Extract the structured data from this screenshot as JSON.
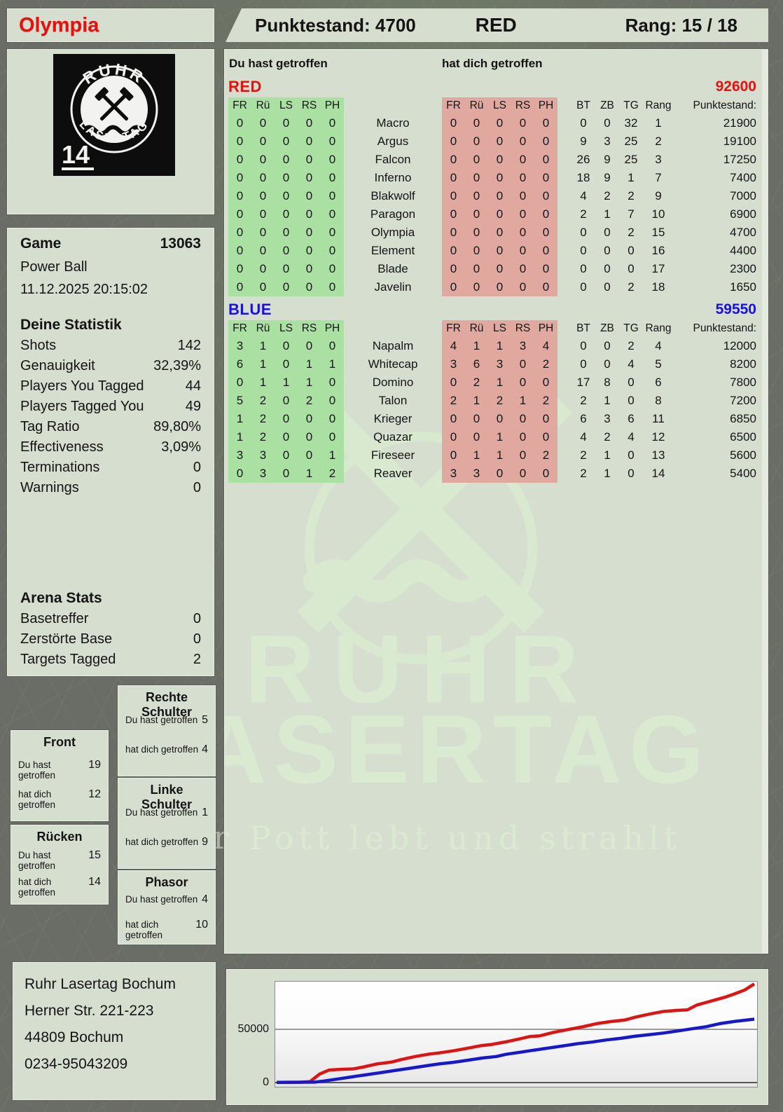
{
  "header": {
    "player_name": "Olympia",
    "score_label": "Punktestand: 4700",
    "team_label": "RED",
    "rank_label": "Rang: 15 / 18"
  },
  "logo": {
    "arc_top": "RUHR",
    "arc_bottom": "LASERTAG",
    "pack_number": "14"
  },
  "game": {
    "title": "Game",
    "number": "13063",
    "mode": "Power Ball",
    "datetime": "11.12.2025 20:15:02"
  },
  "stats": {
    "title": "Deine Statistik",
    "rows": [
      {
        "label": "Shots",
        "value": "142"
      },
      {
        "label": "Genauigkeit",
        "value": "32,39%"
      },
      {
        "label": "Players You Tagged",
        "value": "44"
      },
      {
        "label": "Players Tagged You",
        "value": "49"
      },
      {
        "label": "Tag Ratio",
        "value": "89,80%"
      },
      {
        "label": "Effectiveness",
        "value": "3,09%"
      },
      {
        "label": "Terminations",
        "value": "0"
      },
      {
        "label": "Warnings",
        "value": "0"
      }
    ]
  },
  "arena_stats": {
    "title": "Arena Stats",
    "rows": [
      {
        "label": "Basetreffer",
        "value": "0"
      },
      {
        "label": "Zerstörte Base",
        "value": "0"
      },
      {
        "label": "Targets Tagged",
        "value": "2"
      }
    ]
  },
  "hit_zones": [
    {
      "title": "Rechte Schulter",
      "hit_label": "Du hast getroffen",
      "hit": "5",
      "got_label": "hat dich getroffen",
      "got": "4"
    },
    {
      "title": "Front",
      "hit_label": "Du hast getroffen",
      "hit": "19",
      "got_label": "hat dich getroffen",
      "got": "12"
    },
    {
      "title": "Linke Schulter",
      "hit_label": "Du hast getroffen",
      "hit": "1",
      "got_label": "hat dich getroffen",
      "got": "9"
    },
    {
      "title": "Rücken",
      "hit_label": "Du hast getroffen",
      "hit": "15",
      "got_label": "hat dich getroffen",
      "got": "14"
    },
    {
      "title": "Phasor",
      "hit_label": "Du hast getroffen",
      "hit": "4",
      "got_label": "hat dich getroffen",
      "got": "10"
    }
  ],
  "tables": {
    "you_hit_label": "Du hast getroffen",
    "hit_you_label": "hat dich getroffen",
    "zone_cols": [
      "FR",
      "Rü",
      "LS",
      "RS",
      "PH"
    ],
    "stat_cols": [
      "BT",
      "ZB",
      "TG",
      "Rang",
      "Punktestand:"
    ],
    "teams": [
      {
        "name": "RED",
        "color": "#e8100c",
        "total": "92600",
        "rows": [
          {
            "player": "Macro",
            "you": [
              0,
              0,
              0,
              0,
              0
            ],
            "them": [
              0,
              0,
              0,
              0,
              0
            ],
            "bt": 0,
            "zb": 0,
            "tg": 32,
            "rang": 1,
            "score": "21900"
          },
          {
            "player": "Argus",
            "you": [
              0,
              0,
              0,
              0,
              0
            ],
            "them": [
              0,
              0,
              0,
              0,
              0
            ],
            "bt": 9,
            "zb": 3,
            "tg": 25,
            "rang": 2,
            "score": "19100"
          },
          {
            "player": "Falcon",
            "you": [
              0,
              0,
              0,
              0,
              0
            ],
            "them": [
              0,
              0,
              0,
              0,
              0
            ],
            "bt": 26,
            "zb": 9,
            "tg": 25,
            "rang": 3,
            "score": "17250"
          },
          {
            "player": "Inferno",
            "you": [
              0,
              0,
              0,
              0,
              0
            ],
            "them": [
              0,
              0,
              0,
              0,
              0
            ],
            "bt": 18,
            "zb": 9,
            "tg": 1,
            "rang": 7,
            "score": "7400"
          },
          {
            "player": "Blakwolf",
            "you": [
              0,
              0,
              0,
              0,
              0
            ],
            "them": [
              0,
              0,
              0,
              0,
              0
            ],
            "bt": 4,
            "zb": 2,
            "tg": 2,
            "rang": 9,
            "score": "7000"
          },
          {
            "player": "Paragon",
            "you": [
              0,
              0,
              0,
              0,
              0
            ],
            "them": [
              0,
              0,
              0,
              0,
              0
            ],
            "bt": 2,
            "zb": 1,
            "tg": 7,
            "rang": 10,
            "score": "6900"
          },
          {
            "player": "Olympia",
            "you": [
              0,
              0,
              0,
              0,
              0
            ],
            "them": [
              0,
              0,
              0,
              0,
              0
            ],
            "bt": 0,
            "zb": 0,
            "tg": 2,
            "rang": 15,
            "score": "4700"
          },
          {
            "player": "Element",
            "you": [
              0,
              0,
              0,
              0,
              0
            ],
            "them": [
              0,
              0,
              0,
              0,
              0
            ],
            "bt": 0,
            "zb": 0,
            "tg": 0,
            "rang": 16,
            "score": "4400"
          },
          {
            "player": "Blade",
            "you": [
              0,
              0,
              0,
              0,
              0
            ],
            "them": [
              0,
              0,
              0,
              0,
              0
            ],
            "bt": 0,
            "zb": 0,
            "tg": 0,
            "rang": 17,
            "score": "2300"
          },
          {
            "player": "Javelin",
            "you": [
              0,
              0,
              0,
              0,
              0
            ],
            "them": [
              0,
              0,
              0,
              0,
              0
            ],
            "bt": 0,
            "zb": 0,
            "tg": 2,
            "rang": 18,
            "score": "1650"
          }
        ]
      },
      {
        "name": "BLUE",
        "color": "#1a12e0",
        "total": "59550",
        "rows": [
          {
            "player": "Napalm",
            "you": [
              3,
              1,
              0,
              0,
              0
            ],
            "them": [
              4,
              1,
              1,
              3,
              4
            ],
            "bt": 0,
            "zb": 0,
            "tg": 2,
            "rang": 4,
            "score": "12000"
          },
          {
            "player": "Whitecap",
            "you": [
              6,
              1,
              0,
              1,
              1
            ],
            "them": [
              3,
              6,
              3,
              0,
              2
            ],
            "bt": 0,
            "zb": 0,
            "tg": 4,
            "rang": 5,
            "score": "8200"
          },
          {
            "player": "Domino",
            "you": [
              0,
              1,
              1,
              1,
              0
            ],
            "them": [
              0,
              2,
              1,
              0,
              0
            ],
            "bt": 17,
            "zb": 8,
            "tg": 0,
            "rang": 6,
            "score": "7800"
          },
          {
            "player": "Talon",
            "you": [
              5,
              2,
              0,
              2,
              0
            ],
            "them": [
              2,
              1,
              2,
              1,
              2
            ],
            "bt": 2,
            "zb": 1,
            "tg": 0,
            "rang": 8,
            "score": "7200"
          },
          {
            "player": "Krieger",
            "you": [
              1,
              2,
              0,
              0,
              0
            ],
            "them": [
              0,
              0,
              0,
              0,
              0
            ],
            "bt": 6,
            "zb": 3,
            "tg": 6,
            "rang": 11,
            "score": "6850"
          },
          {
            "player": "Quazar",
            "you": [
              1,
              2,
              0,
              0,
              0
            ],
            "them": [
              0,
              0,
              1,
              0,
              0
            ],
            "bt": 4,
            "zb": 2,
            "tg": 4,
            "rang": 12,
            "score": "6500"
          },
          {
            "player": "Fireseer",
            "you": [
              3,
              3,
              0,
              0,
              1
            ],
            "them": [
              0,
              1,
              1,
              0,
              2
            ],
            "bt": 2,
            "zb": 1,
            "tg": 0,
            "rang": 13,
            "score": "5600"
          },
          {
            "player": "Reaver",
            "you": [
              0,
              3,
              0,
              1,
              2
            ],
            "them": [
              3,
              3,
              0,
              0,
              0
            ],
            "bt": 2,
            "zb": 1,
            "tg": 0,
            "rang": 14,
            "score": "5400"
          }
        ]
      }
    ]
  },
  "watermark": {
    "line1": "RUHR",
    "line2": "LASERTAG",
    "slogan": "Der Pott lebt und strahlt"
  },
  "address": {
    "lines": [
      "Ruhr Lasertag Bochum",
      "Herner Str. 221-223",
      "44809 Bochum",
      "0234-95043209"
    ]
  },
  "chart_data": {
    "type": "line",
    "title": "",
    "xlabel": "",
    "ylabel": "",
    "yticks": [
      "50000",
      "0"
    ],
    "ylim": [
      0,
      95000
    ],
    "grid": "horizontal at 0 and 50000",
    "legend": "none",
    "series": [
      {
        "name": "RED",
        "color": "#dd1414",
        "points": [
          [
            0,
            200
          ],
          [
            0.05,
            300
          ],
          [
            0.07,
            900
          ],
          [
            0.09,
            8000
          ],
          [
            0.11,
            11800
          ],
          [
            0.13,
            12300
          ],
          [
            0.16,
            12800
          ],
          [
            0.18,
            14500
          ],
          [
            0.21,
            17500
          ],
          [
            0.24,
            19200
          ],
          [
            0.26,
            21500
          ],
          [
            0.29,
            24500
          ],
          [
            0.32,
            26800
          ],
          [
            0.34,
            27800
          ],
          [
            0.37,
            29800
          ],
          [
            0.4,
            32300
          ],
          [
            0.43,
            34800
          ],
          [
            0.45,
            35800
          ],
          [
            0.48,
            38200
          ],
          [
            0.51,
            41200
          ],
          [
            0.53,
            43200
          ],
          [
            0.55,
            43800
          ],
          [
            0.58,
            47200
          ],
          [
            0.61,
            49800
          ],
          [
            0.64,
            52300
          ],
          [
            0.67,
            55300
          ],
          [
            0.7,
            57300
          ],
          [
            0.73,
            58800
          ],
          [
            0.75,
            61300
          ],
          [
            0.78,
            64300
          ],
          [
            0.81,
            66800
          ],
          [
            0.84,
            67800
          ],
          [
            0.86,
            68300
          ],
          [
            0.88,
            72800
          ],
          [
            0.9,
            75300
          ],
          [
            0.92,
            77800
          ],
          [
            0.94,
            80300
          ],
          [
            0.96,
            83500
          ],
          [
            0.98,
            87000
          ],
          [
            1,
            92600
          ]
        ]
      },
      {
        "name": "BLUE",
        "color": "#1717cc",
        "points": [
          [
            0,
            100
          ],
          [
            0.08,
            400
          ],
          [
            0.1,
            1500
          ],
          [
            0.13,
            3500
          ],
          [
            0.16,
            5500
          ],
          [
            0.19,
            7500
          ],
          [
            0.22,
            9500
          ],
          [
            0.25,
            11500
          ],
          [
            0.28,
            13500
          ],
          [
            0.31,
            15500
          ],
          [
            0.34,
            17500
          ],
          [
            0.37,
            19000
          ],
          [
            0.4,
            21000
          ],
          [
            0.43,
            23000
          ],
          [
            0.46,
            24500
          ],
          [
            0.48,
            26500
          ],
          [
            0.51,
            28500
          ],
          [
            0.54,
            30500
          ],
          [
            0.57,
            32500
          ],
          [
            0.6,
            34500
          ],
          [
            0.63,
            36500
          ],
          [
            0.66,
            38000
          ],
          [
            0.69,
            40000
          ],
          [
            0.72,
            41500
          ],
          [
            0.75,
            43500
          ],
          [
            0.78,
            45000
          ],
          [
            0.81,
            46500
          ],
          [
            0.84,
            48500
          ],
          [
            0.87,
            50500
          ],
          [
            0.9,
            52500
          ],
          [
            0.93,
            55500
          ],
          [
            0.96,
            57500
          ],
          [
            1,
            59550
          ]
        ]
      }
    ]
  },
  "colors": {
    "team_red": "#e8100c",
    "team_blue": "#1a12e0",
    "zone_you_bg": "#abe0a3",
    "zone_them_bg": "#e0a89f",
    "panel_bg": "#d5decf",
    "page_bg": "#6a6d66"
  }
}
